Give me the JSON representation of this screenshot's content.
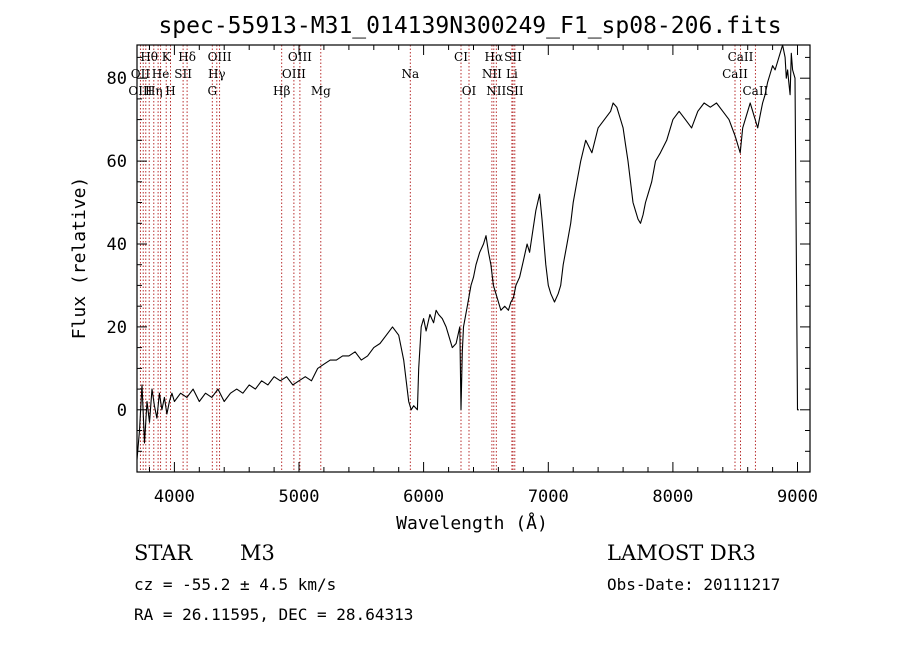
{
  "chart_data": {
    "type": "line",
    "title": "spec-55913-M31_014139N300249_F1_sp08-206.fits",
    "xlabel": "Wavelength (Å)",
    "ylabel": "Flux (relative)",
    "xlim": [
      3700,
      9100
    ],
    "ylim": [
      -15,
      88
    ],
    "xticks": [
      4000,
      5000,
      6000,
      7000,
      8000,
      9000
    ],
    "yticks": [
      0,
      20,
      40,
      60,
      80
    ],
    "series": [
      {
        "name": "flux",
        "x": [
          3700,
          3720,
          3740,
          3760,
          3780,
          3800,
          3820,
          3840,
          3860,
          3880,
          3900,
          3920,
          3940,
          3960,
          3980,
          4000,
          4050,
          4100,
          4150,
          4200,
          4250,
          4300,
          4350,
          4400,
          4450,
          4500,
          4550,
          4600,
          4650,
          4700,
          4750,
          4800,
          4850,
          4900,
          4950,
          5000,
          5050,
          5100,
          5150,
          5200,
          5250,
          5300,
          5350,
          5400,
          5450,
          5500,
          5550,
          5600,
          5650,
          5700,
          5750,
          5800,
          5840,
          5880,
          5900,
          5920,
          5950,
          5960,
          5980,
          6000,
          6020,
          6050,
          6080,
          6100,
          6120,
          6150,
          6180,
          6200,
          6230,
          6260,
          6290,
          6300,
          6310,
          6320,
          6350,
          6380,
          6400,
          6420,
          6450,
          6480,
          6500,
          6520,
          6540,
          6560,
          6580,
          6600,
          6620,
          6650,
          6680,
          6700,
          6720,
          6740,
          6770,
          6800,
          6830,
          6850,
          6880,
          6900,
          6930,
          6950,
          6980,
          7000,
          7020,
          7050,
          7080,
          7100,
          7120,
          7150,
          7180,
          7200,
          7230,
          7260,
          7300,
          7350,
          7400,
          7450,
          7500,
          7520,
          7550,
          7580,
          7600,
          7620,
          7640,
          7660,
          7680,
          7700,
          7720,
          7740,
          7760,
          7780,
          7800,
          7830,
          7860,
          7900,
          7950,
          8000,
          8050,
          8100,
          8150,
          8200,
          8250,
          8300,
          8350,
          8400,
          8450,
          8500,
          8520,
          8540,
          8560,
          8580,
          8600,
          8620,
          8640,
          8660,
          8680,
          8700,
          8720,
          8740,
          8760,
          8780,
          8800,
          8820,
          8840,
          8860,
          8880,
          8900,
          8910,
          8920,
          8930,
          8940,
          8950,
          8960,
          8980,
          9000,
          9010
        ],
        "y": [
          -12,
          -5,
          6,
          -8,
          2,
          -3,
          5,
          1,
          -2,
          4,
          0,
          3,
          -1,
          2,
          4,
          2,
          4,
          3,
          5,
          2,
          4,
          3,
          5,
          2,
          4,
          5,
          4,
          6,
          5,
          7,
          6,
          8,
          7,
          8,
          6,
          7,
          8,
          7,
          10,
          11,
          12,
          12,
          13,
          13,
          14,
          12,
          13,
          15,
          16,
          18,
          20,
          18,
          12,
          2,
          0,
          1,
          0,
          10,
          20,
          22,
          19,
          23,
          21,
          24,
          23,
          22,
          20,
          18,
          15,
          16,
          20,
          0,
          14,
          20,
          25,
          30,
          32,
          35,
          38,
          40,
          42,
          38,
          35,
          30,
          28,
          26,
          24,
          25,
          24,
          26,
          27,
          30,
          32,
          36,
          40,
          38,
          44,
          48,
          52,
          46,
          35,
          30,
          28,
          26,
          28,
          30,
          35,
          40,
          45,
          50,
          55,
          60,
          65,
          62,
          68,
          70,
          72,
          74,
          73,
          70,
          68,
          64,
          60,
          55,
          50,
          48,
          46,
          45,
          47,
          50,
          52,
          55,
          60,
          62,
          65,
          70,
          72,
          70,
          68,
          72,
          74,
          73,
          74,
          72,
          70,
          66,
          64,
          62,
          68,
          70,
          72,
          74,
          72,
          70,
          68,
          71,
          74,
          76,
          79,
          81,
          83,
          82,
          84,
          86,
          88,
          85,
          80,
          82,
          79,
          76,
          86,
          82,
          80,
          0,
          0
        ]
      }
    ],
    "line_labels": [
      {
        "text": "Hθ",
        "row": 1,
        "x": 3798
      },
      {
        "text": "K",
        "row": 1,
        "x": 3934
      },
      {
        "text": "Hδ",
        "row": 1,
        "x": 4102
      },
      {
        "text": "OIII",
        "row": 1,
        "x": 4363
      },
      {
        "text": "OIII",
        "row": 1,
        "x": 5007
      },
      {
        "text": "CI",
        "row": 1,
        "x": 6300
      },
      {
        "text": "Hα",
        "row": 1,
        "x": 6563
      },
      {
        "text": "SII",
        "row": 1,
        "x": 6717
      },
      {
        "text": "CaII",
        "row": 1,
        "x": 8542
      },
      {
        "text": "OII",
        "row": 2,
        "x": 3727
      },
      {
        "text": "He",
        "row": 2,
        "x": 3889
      },
      {
        "text": "SII",
        "row": 2,
        "x": 4070
      },
      {
        "text": "Hγ",
        "row": 2,
        "x": 4340
      },
      {
        "text": "OIII",
        "row": 2,
        "x": 4959
      },
      {
        "text": "Na",
        "row": 2,
        "x": 5893
      },
      {
        "text": "NII",
        "row": 2,
        "x": 6548
      },
      {
        "text": "Li",
        "row": 2,
        "x": 6708
      },
      {
        "text": "CaII",
        "row": 2,
        "x": 8498
      },
      {
        "text": "OIII",
        "row": 3,
        "x": 3727
      },
      {
        "text": "Hη",
        "row": 3,
        "x": 3835
      },
      {
        "text": "H",
        "row": 3,
        "x": 3969
      },
      {
        "text": "G",
        "row": 3,
        "x": 4304
      },
      {
        "text": "Hβ",
        "row": 3,
        "x": 4861
      },
      {
        "text": "Mg",
        "row": 3,
        "x": 5175
      },
      {
        "text": "OI",
        "row": 3,
        "x": 6364
      },
      {
        "text": "NII",
        "row": 3,
        "x": 6583
      },
      {
        "text": "SII",
        "row": 3,
        "x": 6731
      },
      {
        "text": "CaII",
        "row": 3,
        "x": 8662
      }
    ],
    "line_wavelengths": [
      3727,
      3750,
      3771,
      3798,
      3835,
      3869,
      3889,
      3934,
      3969,
      4070,
      4102,
      4304,
      4340,
      4363,
      4861,
      4959,
      5007,
      5175,
      5893,
      6300,
      6364,
      6548,
      6563,
      6583,
      6708,
      6717,
      6731,
      8498,
      8542,
      8662
    ]
  },
  "info": {
    "class": "STAR",
    "subclass": "M3",
    "survey": "LAMOST DR3",
    "cz": "cz = -55.2 ± 4.5 km/s",
    "obs_date": "Obs-Date: 20111217",
    "coords": "RA =  26.11595, DEC =  28.64313"
  }
}
